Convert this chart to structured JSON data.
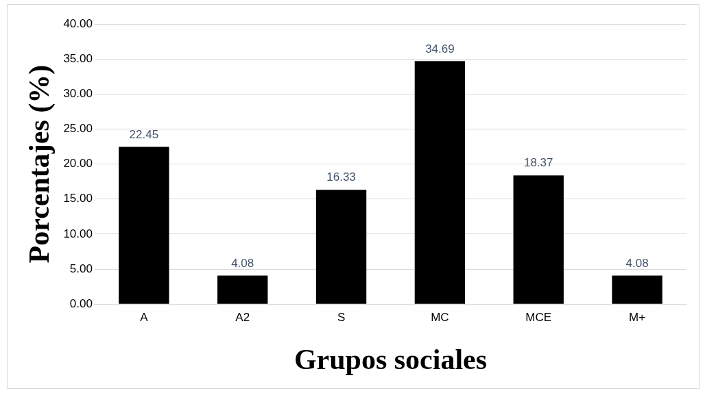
{
  "chart_data": {
    "type": "bar",
    "xlabel": "Grupos sociales",
    "ylabel": "Porcentajes (%)",
    "categories": [
      "A",
      "A2",
      "S",
      "MC",
      "MCE",
      "M+"
    ],
    "values": [
      22.45,
      4.08,
      16.33,
      34.69,
      18.37,
      4.08
    ],
    "color": "#000000",
    "ylim": [
      0,
      40
    ],
    "yticks": [
      {
        "value": 0,
        "label": "0.00"
      },
      {
        "value": 5,
        "label": "5.00"
      },
      {
        "value": 10,
        "label": "10.00"
      },
      {
        "value": 15,
        "label": "15.00"
      },
      {
        "value": 20,
        "label": "20.00"
      },
      {
        "value": 25,
        "label": "25.00"
      },
      {
        "value": 30,
        "label": "30.00"
      },
      {
        "value": 35,
        "label": "35.00"
      },
      {
        "value": 40,
        "label": "40.00"
      }
    ],
    "grid": "y",
    "data_labels": true,
    "legend": false
  }
}
